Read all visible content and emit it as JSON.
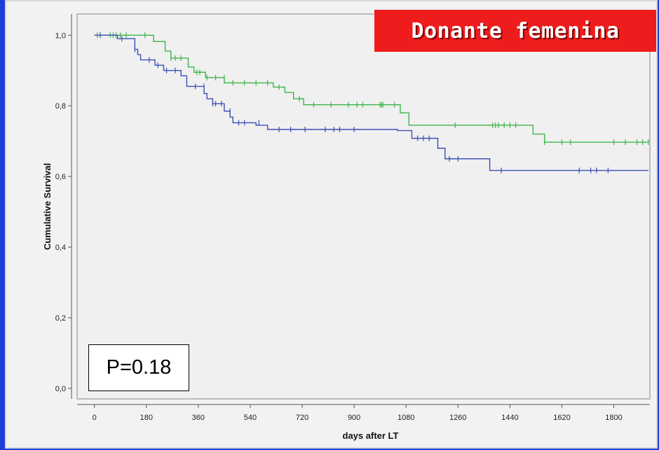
{
  "title_box": {
    "text": "Donante femenina"
  },
  "pvalue_box": {
    "text": "P=0.18"
  },
  "colors": {
    "series_green": "#3cb44b",
    "series_blue": "#3b4fb8",
    "title_bg": "#ee1c1c",
    "plot_bg": "#f0f0f0"
  },
  "chart_data": {
    "type": "line",
    "xlabel": "days after LT",
    "ylabel": "Cumulative Survival",
    "xlim": [
      -60,
      1925
    ],
    "ylim": [
      -0.03,
      1.06
    ],
    "xticks": [
      0,
      180,
      360,
      540,
      720,
      900,
      1080,
      1260,
      1440,
      1620,
      1800
    ],
    "xtick_labels": [
      "0",
      "180",
      "360",
      "540",
      "720",
      "900",
      "1080",
      "1260",
      "1440",
      "1620",
      "1800"
    ],
    "yticks": [
      0.0,
      0.2,
      0.4,
      0.6,
      0.8,
      1.0
    ],
    "ytick_labels": [
      "0,0",
      "0,2",
      "0,4",
      "0,6",
      "0,8",
      "1,0"
    ],
    "grid": false,
    "series": [
      {
        "color": "#3cb44b",
        "steps": [
          [
            0,
            1.0
          ],
          [
            205,
            0.982
          ],
          [
            245,
            0.955
          ],
          [
            265,
            0.935
          ],
          [
            325,
            0.91
          ],
          [
            345,
            0.895
          ],
          [
            385,
            0.88
          ],
          [
            450,
            0.865
          ],
          [
            620,
            0.853
          ],
          [
            660,
            0.838
          ],
          [
            690,
            0.82
          ],
          [
            725,
            0.803
          ],
          [
            1060,
            0.78
          ],
          [
            1090,
            0.745
          ],
          [
            1520,
            0.72
          ],
          [
            1560,
            0.697
          ],
          [
            1920,
            0.697
          ]
        ],
        "censored": [
          [
            10,
            1.0
          ],
          [
            55,
            1.0
          ],
          [
            65,
            1.0
          ],
          [
            75,
            1.0
          ],
          [
            90,
            1.0
          ],
          [
            110,
            1.0
          ],
          [
            175,
            1.0
          ],
          [
            265,
            0.935
          ],
          [
            280,
            0.935
          ],
          [
            300,
            0.935
          ],
          [
            355,
            0.895
          ],
          [
            365,
            0.895
          ],
          [
            390,
            0.88
          ],
          [
            420,
            0.88
          ],
          [
            450,
            0.88
          ],
          [
            480,
            0.865
          ],
          [
            520,
            0.865
          ],
          [
            560,
            0.865
          ],
          [
            600,
            0.865
          ],
          [
            640,
            0.853
          ],
          [
            710,
            0.82
          ],
          [
            760,
            0.803
          ],
          [
            820,
            0.803
          ],
          [
            880,
            0.803
          ],
          [
            910,
            0.803
          ],
          [
            930,
            0.803
          ],
          [
            990,
            0.803
          ],
          [
            995,
            0.803
          ],
          [
            1000,
            0.803
          ],
          [
            1040,
            0.803
          ],
          [
            1250,
            0.745
          ],
          [
            1380,
            0.745
          ],
          [
            1390,
            0.745
          ],
          [
            1400,
            0.745
          ],
          [
            1420,
            0.745
          ],
          [
            1440,
            0.745
          ],
          [
            1460,
            0.745
          ],
          [
            1560,
            0.697
          ],
          [
            1620,
            0.697
          ],
          [
            1650,
            0.697
          ],
          [
            1800,
            0.697
          ],
          [
            1840,
            0.697
          ],
          [
            1880,
            0.697
          ],
          [
            1900,
            0.697
          ],
          [
            1920,
            0.697
          ]
        ]
      },
      {
        "color": "#3b4fb8",
        "steps": [
          [
            0,
            1.0
          ],
          [
            80,
            0.99
          ],
          [
            140,
            0.96
          ],
          [
            150,
            0.945
          ],
          [
            160,
            0.93
          ],
          [
            210,
            0.915
          ],
          [
            240,
            0.9
          ],
          [
            300,
            0.885
          ],
          [
            320,
            0.855
          ],
          [
            380,
            0.835
          ],
          [
            390,
            0.82
          ],
          [
            410,
            0.806
          ],
          [
            450,
            0.785
          ],
          [
            470,
            0.768
          ],
          [
            480,
            0.752
          ],
          [
            560,
            0.745
          ],
          [
            600,
            0.733
          ],
          [
            1050,
            0.73
          ],
          [
            1100,
            0.708
          ],
          [
            1190,
            0.68
          ],
          [
            1215,
            0.65
          ],
          [
            1370,
            0.617
          ],
          [
            1920,
            0.617
          ]
        ],
        "censored": [
          [
            20,
            1.0
          ],
          [
            95,
            0.99
          ],
          [
            140,
            0.96
          ],
          [
            190,
            0.93
          ],
          [
            220,
            0.915
          ],
          [
            250,
            0.9
          ],
          [
            280,
            0.9
          ],
          [
            350,
            0.855
          ],
          [
            380,
            0.855
          ],
          [
            410,
            0.806
          ],
          [
            420,
            0.806
          ],
          [
            440,
            0.806
          ],
          [
            470,
            0.785
          ],
          [
            500,
            0.752
          ],
          [
            520,
            0.752
          ],
          [
            570,
            0.752
          ],
          [
            640,
            0.733
          ],
          [
            680,
            0.733
          ],
          [
            730,
            0.733
          ],
          [
            800,
            0.733
          ],
          [
            830,
            0.733
          ],
          [
            850,
            0.733
          ],
          [
            900,
            0.733
          ],
          [
            1120,
            0.708
          ],
          [
            1140,
            0.708
          ],
          [
            1160,
            0.708
          ],
          [
            1230,
            0.65
          ],
          [
            1260,
            0.65
          ],
          [
            1410,
            0.617
          ],
          [
            1680,
            0.617
          ],
          [
            1720,
            0.617
          ],
          [
            1740,
            0.617
          ],
          [
            1780,
            0.617
          ]
        ]
      }
    ]
  }
}
